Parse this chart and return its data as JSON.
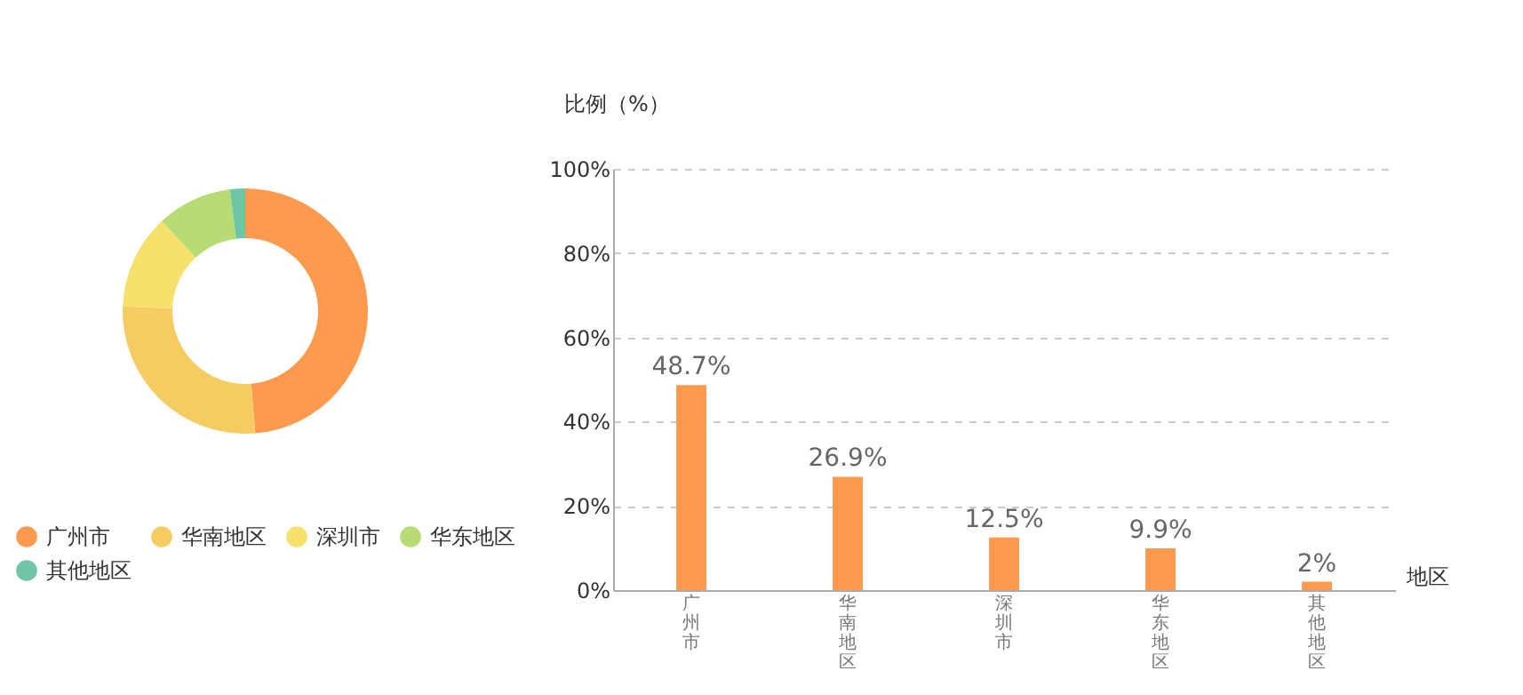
{
  "chart_data": [
    {
      "type": "donut",
      "categories": [
        "广州市",
        "华南地区",
        "深圳市",
        "华东地区",
        "其他地区"
      ],
      "values": [
        48.7,
        26.9,
        12.5,
        9.9,
        2
      ],
      "colors": [
        "#fe9a4d",
        "#f5cb62",
        "#f7e16c",
        "#b6dc73",
        "#6fc6a5"
      ],
      "legend": "bottom"
    },
    {
      "type": "bar",
      "ylabel": "比例（%）",
      "xlabel": "地区",
      "categories": [
        "广州市",
        "华南地区",
        "深圳市",
        "华东地区",
        "其他地区"
      ],
      "values": [
        48.7,
        26.9,
        12.5,
        9.9,
        2
      ],
      "color": "#fe9a4d",
      "value_labels": [
        "48.7%",
        "26.9%",
        "12.5%",
        "9.9%",
        "2%"
      ],
      "ylim": [
        0,
        100
      ],
      "yticks": [
        {
          "value": 0,
          "label": "0%"
        },
        {
          "value": 20,
          "label": "20%"
        },
        {
          "value": 40,
          "label": "40%"
        },
        {
          "value": 60,
          "label": "60%"
        },
        {
          "value": 80,
          "label": "80%"
        },
        {
          "value": 100,
          "label": "100%"
        }
      ],
      "grid": "y"
    }
  ]
}
